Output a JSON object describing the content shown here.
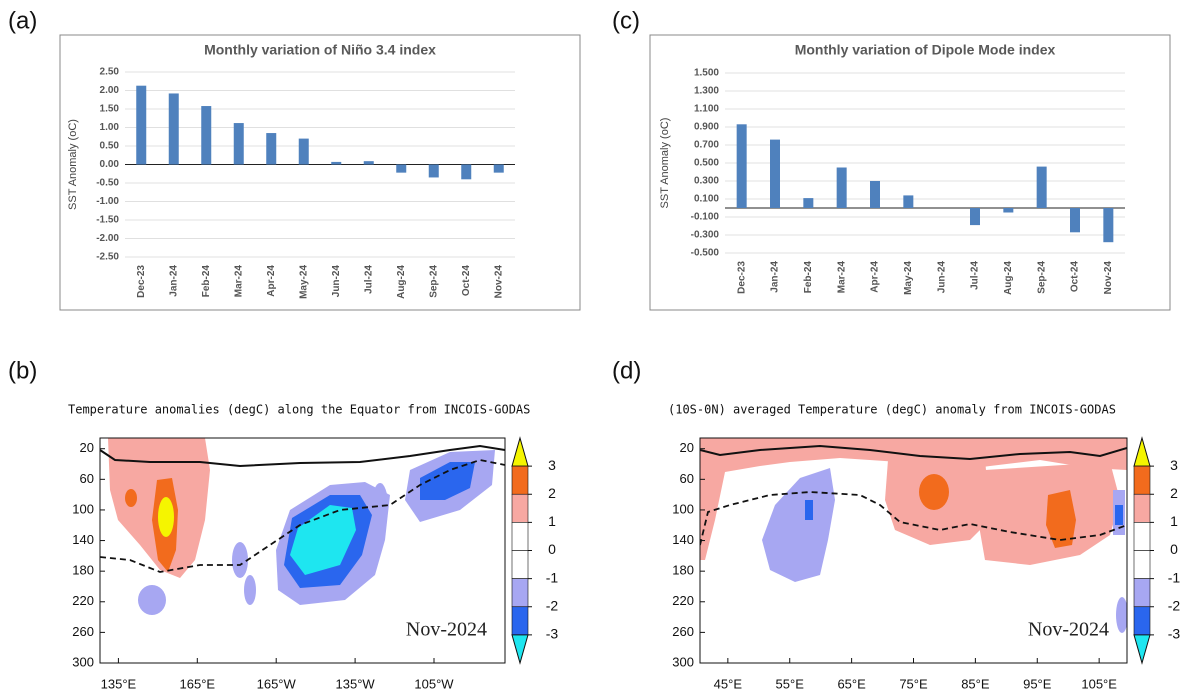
{
  "chart_data": [
    {
      "type": "bar",
      "panel_label": "(a)",
      "title": "Monthly variation of Niño 3.4 index",
      "y_label": "SST Anomaly (oC)",
      "categories": [
        "Dec-23",
        "Jan-24",
        "Feb-24",
        "Mar-24",
        "Apr-24",
        "May-24",
        "Jun-24",
        "Jul-24",
        "Aug-24",
        "Sep-24",
        "Oct-24",
        "Nov-24"
      ],
      "values": [
        2.13,
        1.92,
        1.58,
        1.12,
        0.85,
        0.7,
        0.07,
        0.09,
        -0.22,
        -0.35,
        -0.4,
        -0.22
      ],
      "color": "#4f81bd",
      "ylim": [
        -2.5,
        2.5
      ],
      "yticks": [
        {
          "value": 2.5,
          "label": "2.50"
        },
        {
          "value": 2,
          "label": "2.00"
        },
        {
          "value": 1.5,
          "label": "1.50"
        },
        {
          "value": 1,
          "label": "1.00"
        },
        {
          "value": 0.5,
          "label": "0.50"
        },
        {
          "value": 0,
          "label": "0.00"
        },
        {
          "value": -0.5,
          "label": "-0.50"
        },
        {
          "value": -1,
          "label": "-1.00"
        },
        {
          "value": -1.5,
          "label": "-1.50"
        },
        {
          "value": -2,
          "label": "-2.00"
        },
        {
          "value": -2.5,
          "label": "-2.50"
        }
      ],
      "grid": true
    },
    {
      "type": "contour",
      "panel_label": "(b)",
      "title": "Temperature anomalies (degC) along the Equator from INCOIS-GODAS",
      "annotation": "Nov-2024",
      "xlim": [
        128,
        282
      ],
      "xticks": [
        {
          "value": 135,
          "label": "135°E"
        },
        {
          "value": 165,
          "label": "165°E"
        },
        {
          "value": 195,
          "label": "165°W"
        },
        {
          "value": 225,
          "label": "135°W"
        },
        {
          "value": 255,
          "label": "105°W"
        }
      ],
      "ylim": [
        6,
        300
      ],
      "yticks": [
        20,
        60,
        100,
        140,
        180,
        220,
        260,
        300
      ],
      "colorbar": {
        "clim": [
          -4,
          4
        ],
        "ticks": [
          3,
          2,
          1,
          0,
          -1,
          -2,
          -3
        ],
        "colors": [
          "#f5f500",
          "#f26b1d",
          "#f7a8a2",
          "#ffffff",
          "#ffffff",
          "#a7a7f2",
          "#2a66ee",
          "#1ee6f0"
        ]
      }
    },
    {
      "type": "bar",
      "panel_label": "(c)",
      "title": "Monthly variation of Dipole Mode index",
      "y_label": "SST Anomaly (oC)",
      "categories": [
        "Dec-23",
        "Jan-24",
        "Feb-24",
        "Mar-24",
        "Apr-24",
        "May-24",
        "Jun-24",
        "Jul-24",
        "Aug-24",
        "Sep-24",
        "Oct-24",
        "Nov-24"
      ],
      "values": [
        0.93,
        0.76,
        0.11,
        0.45,
        0.3,
        0.14,
        0.0,
        -0.19,
        -0.05,
        0.46,
        -0.27,
        -0.38
      ],
      "color": "#4f81bd",
      "ylim": [
        -0.5,
        1.5
      ],
      "yticks": [
        {
          "value": 1.5,
          "label": "1.500"
        },
        {
          "value": 1.3,
          "label": "1.300"
        },
        {
          "value": 1.1,
          "label": "1.100"
        },
        {
          "value": 0.9,
          "label": "0.900"
        },
        {
          "value": 0.7,
          "label": "0.700"
        },
        {
          "value": 0.5,
          "label": "0.500"
        },
        {
          "value": 0.3,
          "label": "0.300"
        },
        {
          "value": 0.1,
          "label": "0.100"
        },
        {
          "value": -0.1,
          "label": "-0.100"
        },
        {
          "value": -0.3,
          "label": "-0.300"
        },
        {
          "value": -0.5,
          "label": "-0.500"
        }
      ],
      "grid": true
    },
    {
      "type": "contour",
      "panel_label": "(d)",
      "title": "(10S-0N) averaged Temperature (degC) anomaly from INCOIS-GODAS",
      "annotation": "Nov-2024",
      "xlim": [
        40.5,
        109.5
      ],
      "xticks": [
        {
          "value": 45,
          "label": "45°E"
        },
        {
          "value": 55,
          "label": "55°E"
        },
        {
          "value": 65,
          "label": "65°E"
        },
        {
          "value": 75,
          "label": "75°E"
        },
        {
          "value": 85,
          "label": "85°E"
        },
        {
          "value": 95,
          "label": "95°E"
        },
        {
          "value": 105,
          "label": "105°E"
        }
      ],
      "ylim": [
        6,
        300
      ],
      "yticks": [
        20,
        60,
        100,
        140,
        180,
        220,
        260,
        300
      ],
      "colorbar": {
        "clim": [
          -4,
          4
        ],
        "ticks": [
          3,
          2,
          1,
          0,
          -1,
          -2,
          -3
        ],
        "colors": [
          "#f5f500",
          "#f26b1d",
          "#f7a8a2",
          "#ffffff",
          "#ffffff",
          "#a7a7f2",
          "#2a66ee",
          "#1ee6f0"
        ]
      }
    }
  ]
}
